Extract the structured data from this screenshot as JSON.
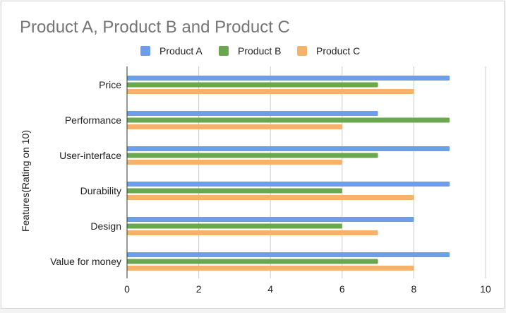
{
  "chart_data": {
    "type": "bar",
    "orientation": "horizontal",
    "title": "Product A, Product B and Product C",
    "ylabel": "Features(Rating on 10)",
    "xlabel": "",
    "categories": [
      "Price",
      "Performance",
      "User-interface",
      "Durability",
      "Design",
      "Value for money"
    ],
    "series": [
      {
        "name": "Product A",
        "color": "#6d9eeb",
        "values": [
          9,
          7,
          9,
          9,
          8,
          9
        ]
      },
      {
        "name": "Product B",
        "color": "#6aa84f",
        "values": [
          7,
          9,
          7,
          6,
          6,
          7
        ]
      },
      {
        "name": "Product C",
        "color": "#f6b26b",
        "values": [
          8,
          6,
          6,
          8,
          7,
          8
        ]
      }
    ],
    "xlim": [
      0,
      10
    ],
    "xticks": [
      "0",
      "2",
      "4",
      "6",
      "8",
      "10"
    ],
    "grid": true,
    "legend_position": "top"
  }
}
